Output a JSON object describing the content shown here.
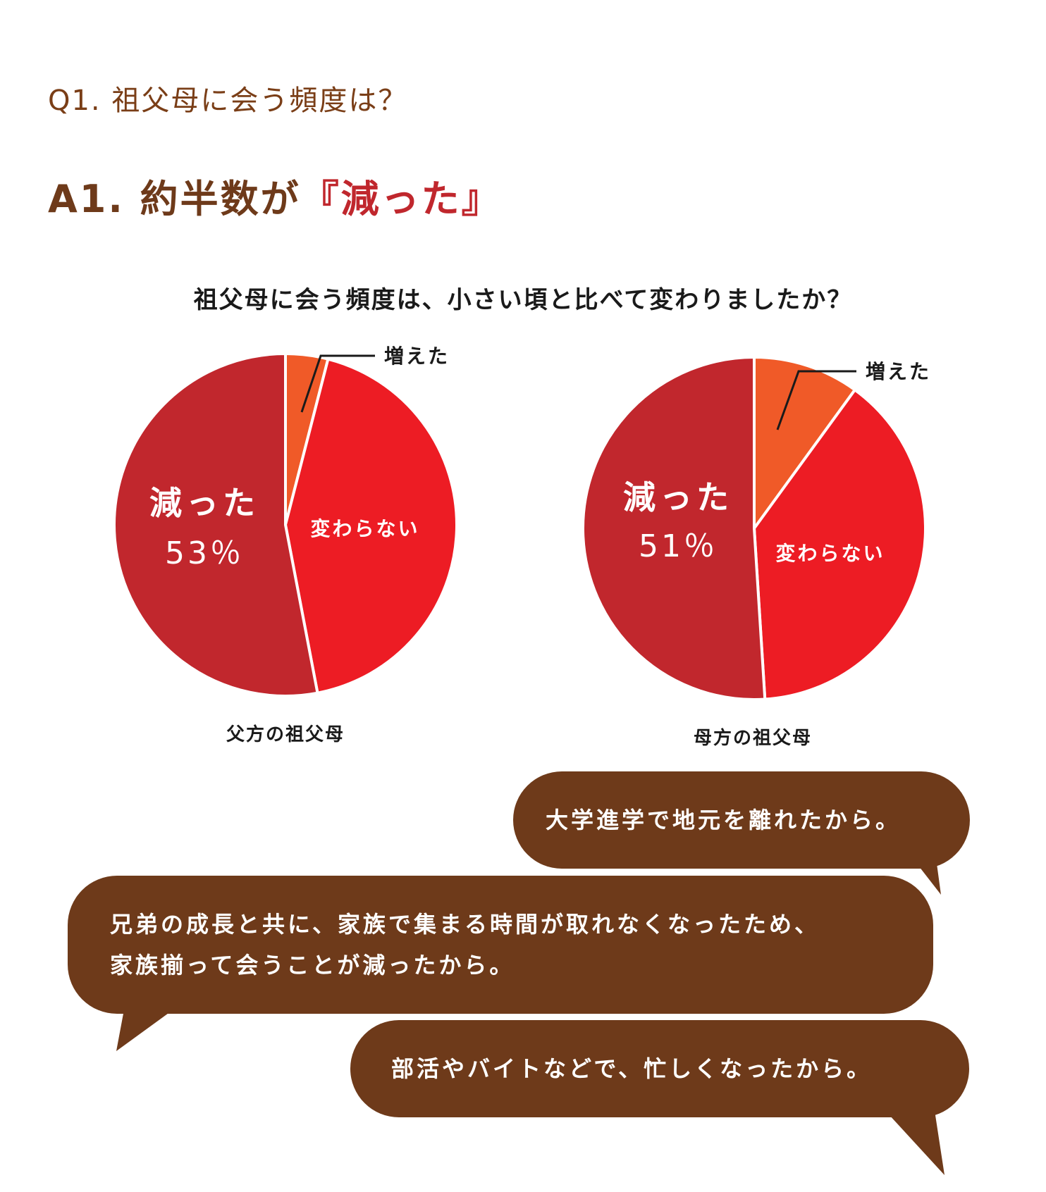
{
  "question": "Q1. 祖父母に会う頻度は？",
  "answer": {
    "prefix": "A1. 約半数が",
    "highlight": "『減った』"
  },
  "chart_data": [
    {
      "type": "pie",
      "title": "祖父母に会う頻度は、小さい頃と比べて変わりましたか？",
      "caption": "父方の祖父母",
      "slices": [
        {
          "label": "増えた",
          "value": 4,
          "color": "#f05a28"
        },
        {
          "label": "変わらない",
          "value": 43,
          "color": "#ed1c24"
        },
        {
          "label": "減った",
          "value": 53,
          "value_label": "53％",
          "color": "#c1272d"
        }
      ]
    },
    {
      "type": "pie",
      "title": "祖父母に会う頻度は、小さい頃と比べて変わりましたか？",
      "caption": "母方の祖父母",
      "slices": [
        {
          "label": "増えた",
          "value": 10,
          "color": "#f05a28"
        },
        {
          "label": "変わらない",
          "value": 39,
          "color": "#ed1c24"
        },
        {
          "label": "減った",
          "value": 51,
          "value_label": "51％",
          "color": "#c1272d"
        }
      ]
    }
  ],
  "bubbles": [
    {
      "text": "大学進学で地元を離れたから。"
    },
    {
      "text": "兄弟の成長と共に、家族で集まる時間が取れなくなったため、\n家族揃って会うことが減ったから。"
    },
    {
      "text": "部活やバイトなどで、忙しくなったから。"
    }
  ]
}
